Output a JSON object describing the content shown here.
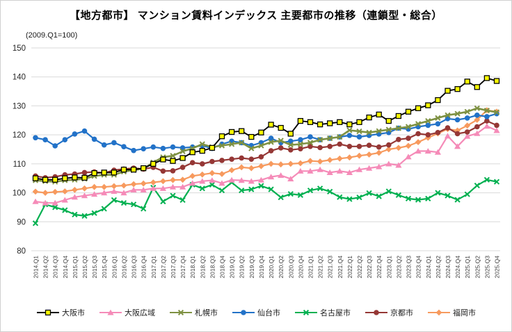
{
  "title": "【地方都市】 マンション賃料インデックス 主要都市の推移（連鎖型・総合）",
  "subtitle": "(2009.Q1=100)",
  "chart_data": {
    "type": "line",
    "title": "【地方都市】 マンション賃料インデックス 主要都市の推移（連鎖型・総合）",
    "axis_note": "(2009.Q1=100)",
    "xlabel": "",
    "ylabel": "",
    "ylim": [
      80,
      150
    ],
    "yticks": [
      80,
      90,
      100,
      110,
      120,
      130,
      140,
      150
    ],
    "grid": "horizontal-light-gray",
    "legend_position": "bottom",
    "categories": [
      "2014.Q1",
      "2014.Q2",
      "2014.Q3",
      "2014.Q4",
      "2015.Q1",
      "2015.Q2",
      "2015.Q3",
      "2015.Q4",
      "2016.Q1",
      "2016.Q2",
      "2016.Q3",
      "2016.Q4",
      "2017.Q1",
      "2017.Q2",
      "2017.Q3",
      "2017.Q4",
      "2018.Q1",
      "2018.Q2",
      "2018.Q3",
      "2018.Q4",
      "2019.Q1",
      "2019.Q2",
      "2019.Q3",
      "2019.Q4",
      "2020.Q1",
      "2020.Q2",
      "2020.Q3",
      "2020.Q4",
      "2021.Q1",
      "2021.Q2",
      "2021.Q3",
      "2021.Q4",
      "2022.Q1",
      "2022.Q2",
      "2022.Q3",
      "2022.Q4",
      "2023.Q1",
      "2023.Q2",
      "2023.Q3",
      "2023.Q4",
      "2024.Q1",
      "2024.Q2",
      "2024.Q3",
      "2024.Q4",
      "2025.Q1",
      "2025.Q2",
      "2025.Q3",
      "2025.Q4"
    ],
    "series": [
      {
        "key": "osaka-city",
        "name": "大阪市",
        "color": "#000000",
        "marker": "square",
        "marker_fill": "#FFFF00",
        "marker_stroke": "#000000",
        "values": [
          105,
          104.5,
          104.5,
          105,
          105.3,
          105.2,
          106.8,
          107,
          107,
          108,
          108,
          108.5,
          110,
          111.5,
          111,
          112,
          114,
          114.5,
          115.5,
          119.5,
          121,
          121.3,
          119.3,
          120.8,
          123.5,
          122.4,
          120.4,
          124.8,
          124.4,
          123.6,
          124,
          124.4,
          123.6,
          124.4,
          126,
          127,
          124.8,
          126.5,
          128,
          129.2,
          130.2,
          132,
          135.2,
          135.8,
          138.4,
          136.5,
          139.6,
          138.6
        ]
      },
      {
        "key": "osaka-area",
        "name": "大阪広域",
        "color": "#F58BB8",
        "marker": "triangle",
        "values": [
          97,
          96.5,
          96.5,
          97.5,
          98.5,
          99,
          99.5,
          100,
          100.5,
          100,
          101,
          101,
          101.5,
          101.5,
          102,
          102,
          103.3,
          104,
          104.3,
          103.3,
          104.4,
          104.3,
          104,
          104.4,
          105.5,
          106,
          104.8,
          107.5,
          107.5,
          108,
          107,
          107.5,
          107,
          108,
          108.5,
          109,
          110,
          109.5,
          112.4,
          114.4,
          114.4,
          114,
          119.6,
          116,
          119.5,
          120.5,
          123,
          121.5
        ]
      },
      {
        "key": "sapporo",
        "name": "札幌市",
        "color": "#7E9142",
        "marker": "star-x",
        "values": [
          104.3,
          104,
          103.8,
          104.3,
          104.5,
          104.8,
          105.8,
          106.2,
          106.2,
          107.3,
          107.8,
          108.3,
          110.5,
          112.3,
          112.8,
          114.3,
          115.3,
          116.8,
          115.8,
          116.3,
          116.8,
          117.3,
          115.3,
          116.3,
          117.5,
          118,
          116.5,
          116.8,
          117.3,
          118.3,
          118.8,
          119.3,
          121.6,
          121.2,
          120.8,
          121.3,
          121.8,
          122.3,
          122.8,
          123.8,
          124.8,
          125.8,
          126.8,
          127.3,
          128,
          129.2,
          128.4,
          127.8
        ]
      },
      {
        "key": "sendai",
        "name": "仙台市",
        "color": "#2272C8",
        "marker": "circle",
        "values": [
          119,
          118.3,
          116.2,
          118.3,
          120.3,
          121.3,
          118.5,
          116.5,
          117.3,
          115.9,
          114.6,
          115.2,
          115.8,
          115.3,
          115.8,
          115.5,
          115.8,
          116.3,
          115.3,
          116.8,
          117.8,
          117.3,
          116.3,
          117.3,
          118.8,
          117.3,
          117.8,
          118.3,
          119.3,
          118.3,
          118.8,
          119.3,
          119.8,
          119.3,
          119.8,
          120.3,
          120.8,
          122.3,
          122,
          122.8,
          123.3,
          123.8,
          125.6,
          125.2,
          125.8,
          126.8,
          126.3,
          127.3
        ]
      },
      {
        "key": "nagoya",
        "name": "名古屋市",
        "color": "#00B050",
        "marker": "x",
        "values": [
          89.5,
          96,
          95,
          94,
          92.5,
          92,
          93,
          94.5,
          97.5,
          96.5,
          96,
          94.5,
          101.8,
          97,
          99,
          97.5,
          102.8,
          101.5,
          102.8,
          100.8,
          103.6,
          100.8,
          101.2,
          102.4,
          101.2,
          98.4,
          99.6,
          99.2,
          100.8,
          101.5,
          100.4,
          98.5,
          97.8,
          98.4,
          99.9,
          98.8,
          100.5,
          99.2,
          98,
          97.6,
          98,
          100,
          99,
          97.6,
          99.5,
          102.5,
          104.5,
          103.8
        ]
      },
      {
        "key": "kyoto",
        "name": "京都市",
        "color": "#953735",
        "marker": "circle",
        "values": [
          105.8,
          105.2,
          105.5,
          106.2,
          106.5,
          107,
          107.2,
          106.8,
          107.8,
          108.2,
          108.5,
          108.2,
          108.8,
          107.5,
          107.6,
          108.8,
          110.4,
          110,
          110.8,
          111.2,
          111.6,
          112,
          111.6,
          112.4,
          114.5,
          115.5,
          114.8,
          115.2,
          116,
          115.6,
          116,
          116.8,
          116,
          116,
          116.4,
          115.8,
          116.5,
          118.4,
          118.8,
          120.4,
          120,
          120.8,
          122.4,
          120.4,
          121,
          122.8,
          124.8,
          123.3
        ]
      },
      {
        "key": "fukuoka",
        "name": "福岡市",
        "color": "#F79A5E",
        "marker": "diamond",
        "values": [
          100.4,
          100,
          100.3,
          100.5,
          101,
          101.5,
          102,
          102,
          102.3,
          102.5,
          103,
          103.2,
          103.6,
          104,
          104.4,
          104.5,
          105.8,
          106.3,
          106.8,
          106.5,
          107.8,
          108.8,
          108.5,
          109.2,
          110,
          109.8,
          110,
          110.2,
          111,
          110.8,
          111.3,
          111.8,
          112.2,
          112.8,
          113.2,
          113.8,
          115,
          115.5,
          116.2,
          117.5,
          119,
          120.5,
          122,
          121.5,
          123.2,
          125.2,
          128.5,
          128
        ]
      }
    ]
  }
}
